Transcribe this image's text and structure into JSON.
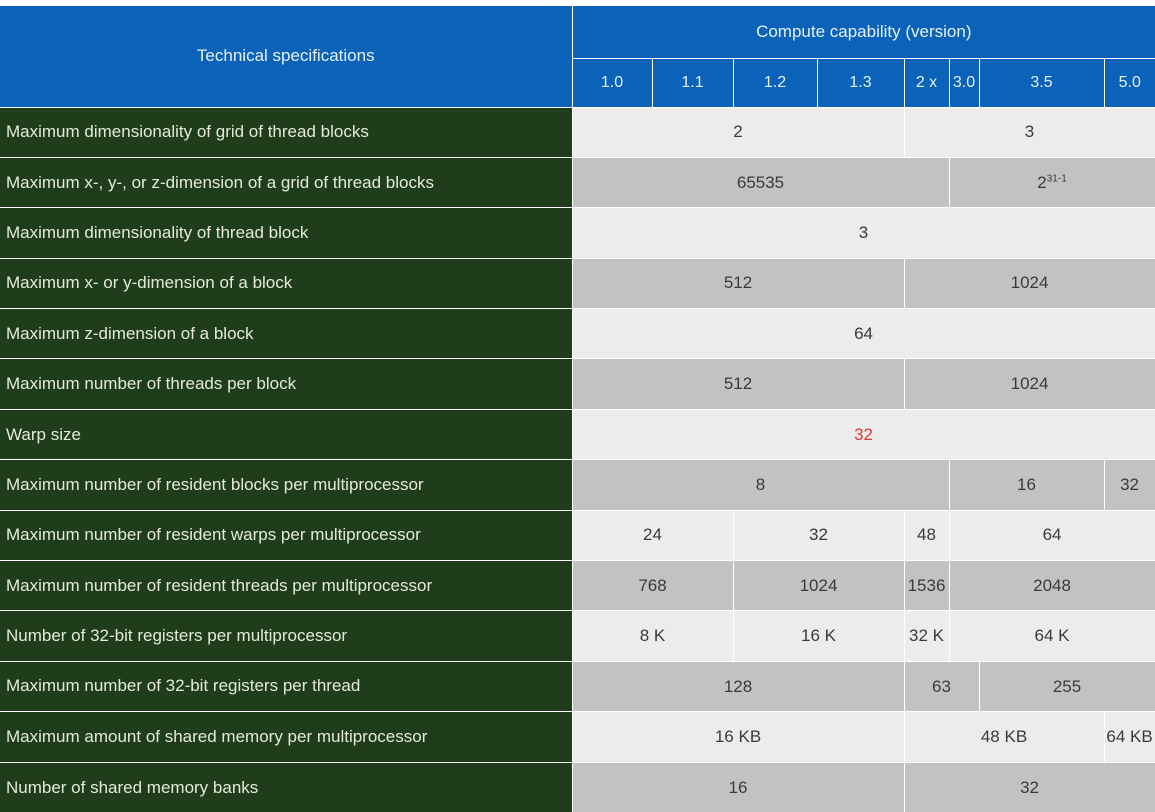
{
  "header": {
    "title": "Technical specifications",
    "group_title": "Compute capability (version)",
    "versions": [
      "1.0",
      "1.1",
      "1.2",
      "1.3",
      "2 x",
      "3.0",
      "3.5",
      "5.0"
    ]
  },
  "rows": [
    {
      "label": "Maximum dimensionality of grid of thread blocks",
      "cells": [
        "2",
        "3"
      ]
    },
    {
      "label": "Maximum x-, y-, or z-dimension of a grid of thread blocks",
      "cells": [
        "65535",
        "2",
        "31-1"
      ]
    },
    {
      "label": "Maximum dimensionality of thread block",
      "cells": [
        "3"
      ]
    },
    {
      "label": "Maximum x- or y-dimension of a block",
      "cells": [
        "512",
        "1024"
      ]
    },
    {
      "label": "Maximum z-dimension of a block",
      "cells": [
        "64"
      ]
    },
    {
      "label": "Maximum number of threads per block",
      "cells": [
        "512",
        "1024"
      ]
    },
    {
      "label": "Warp size",
      "cells": [
        "32"
      ]
    },
    {
      "label": "Maximum number of resident blocks per multiprocessor",
      "cells": [
        "8",
        "16",
        "32"
      ]
    },
    {
      "label": "Maximum number of resident warps per multiprocessor",
      "cells": [
        "24",
        "32",
        "48",
        "64"
      ]
    },
    {
      "label": "Maximum number of resident threads per multiprocessor",
      "cells": [
        "768",
        "1024",
        "1536",
        "2048"
      ]
    },
    {
      "label": "Number of 32-bit registers per multiprocessor",
      "cells": [
        "8 K",
        "16 K",
        "32 K",
        "64 K"
      ]
    },
    {
      "label": "Maximum number of 32-bit registers per thread",
      "cells": [
        "128",
        "63",
        "255"
      ]
    },
    {
      "label": "Maximum amount of shared memory per multiprocessor",
      "cells": [
        "16 KB",
        "48 KB",
        "64 KB"
      ]
    },
    {
      "label": "Number of shared memory banks",
      "cells": [
        "16",
        "32"
      ]
    }
  ],
  "colors": {
    "header_blue": "#0a63b8",
    "label_green": "#1f3d1a",
    "row_light": "#ececec",
    "row_dark": "#c2c2c2",
    "highlight_red": "#e2353a"
  }
}
